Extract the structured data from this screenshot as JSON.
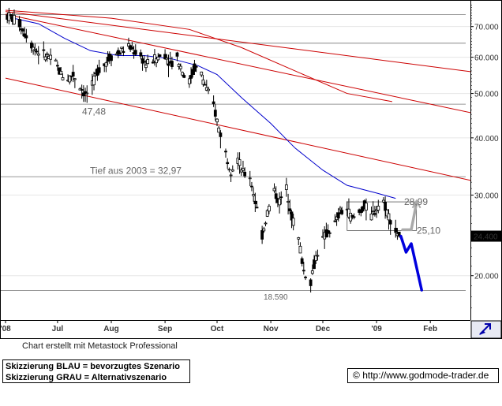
{
  "chart_data": {
    "type": "candlestick",
    "title": "",
    "ylim": [
      16,
      80
    ],
    "y_scale": "log",
    "grid": true,
    "y_ticks": [
      {
        "value": 70,
        "label": "70.000"
      },
      {
        "value": 60,
        "label": "60.000"
      },
      {
        "value": 50,
        "label": "50.000"
      },
      {
        "value": 40,
        "label": "40.000"
      },
      {
        "value": 30,
        "label": "30.000"
      },
      {
        "value": 20,
        "label": "20.000"
      }
    ],
    "x_ticks": [
      {
        "date": "2008-06-01",
        "label": "'08"
      },
      {
        "date": "2008-07-01",
        "label": "Jul"
      },
      {
        "date": "2008-08-01",
        "label": "Aug"
      },
      {
        "date": "2008-09-01",
        "label": "Sep"
      },
      {
        "date": "2008-10-01",
        "label": "Oct"
      },
      {
        "date": "2008-11-01",
        "label": "Nov"
      },
      {
        "date": "2008-12-01",
        "label": "Dec"
      },
      {
        "date": "2009-01-01",
        "label": "'09"
      },
      {
        "date": "2009-02-01",
        "label": "Feb"
      }
    ],
    "horizontal_levels": [
      {
        "value": 74.5,
        "label": ""
      },
      {
        "value": 64.5,
        "label": ""
      },
      {
        "value": 47.48,
        "label": "47,48"
      },
      {
        "value": 32.97,
        "label": "Tief aus 2003  =  32,97"
      },
      {
        "value": 18.59,
        "label": "18.590"
      }
    ],
    "last_price": {
      "value": 24.4,
      "label": "24.400",
      "color": "#000000"
    },
    "close_series": [
      {
        "date": "2008-06-02",
        "close": 74.0
      },
      {
        "date": "2008-06-05",
        "close": 73.0
      },
      {
        "date": "2008-06-09",
        "close": 71.0
      },
      {
        "date": "2008-06-12",
        "close": 68.0
      },
      {
        "date": "2008-06-16",
        "close": 64.0
      },
      {
        "date": "2008-06-19",
        "close": 62.0
      },
      {
        "date": "2008-06-23",
        "close": 61.0
      },
      {
        "date": "2008-06-26",
        "close": 60.0
      },
      {
        "date": "2008-06-30",
        "close": 58.0
      },
      {
        "date": "2008-07-03",
        "close": 55.0
      },
      {
        "date": "2008-07-07",
        "close": 54.0
      },
      {
        "date": "2008-07-10",
        "close": 55.0
      },
      {
        "date": "2008-07-14",
        "close": 52.0
      },
      {
        "date": "2008-07-17",
        "close": 49.5
      },
      {
        "date": "2008-07-21",
        "close": 52.0
      },
      {
        "date": "2008-07-24",
        "close": 56.0
      },
      {
        "date": "2008-07-28",
        "close": 58.0
      },
      {
        "date": "2008-07-31",
        "close": 60.0
      },
      {
        "date": "2008-08-04",
        "close": 61.0
      },
      {
        "date": "2008-08-07",
        "close": 62.0
      },
      {
        "date": "2008-08-11",
        "close": 63.0
      },
      {
        "date": "2008-08-14",
        "close": 62.0
      },
      {
        "date": "2008-08-18",
        "close": 60.0
      },
      {
        "date": "2008-08-21",
        "close": 58.0
      },
      {
        "date": "2008-08-25",
        "close": 59.0
      },
      {
        "date": "2008-08-28",
        "close": 60.0
      },
      {
        "date": "2008-09-01",
        "close": 61.0
      },
      {
        "date": "2008-09-04",
        "close": 58.0
      },
      {
        "date": "2008-09-08",
        "close": 60.0
      },
      {
        "date": "2008-09-11",
        "close": 56.0
      },
      {
        "date": "2008-09-15",
        "close": 53.0
      },
      {
        "date": "2008-09-18",
        "close": 57.0
      },
      {
        "date": "2008-09-22",
        "close": 55.0
      },
      {
        "date": "2008-09-25",
        "close": 51.0
      },
      {
        "date": "2008-09-29",
        "close": 47.0
      },
      {
        "date": "2008-10-02",
        "close": 42.0
      },
      {
        "date": "2008-10-06",
        "close": 37.0
      },
      {
        "date": "2008-10-09",
        "close": 34.0
      },
      {
        "date": "2008-10-13",
        "close": 36.0
      },
      {
        "date": "2008-10-16",
        "close": 33.5
      },
      {
        "date": "2008-10-20",
        "close": 33.0
      },
      {
        "date": "2008-10-23",
        "close": 29.0
      },
      {
        "date": "2008-10-27",
        "close": 24.5
      },
      {
        "date": "2008-10-30",
        "close": 27.5
      },
      {
        "date": "2008-11-03",
        "close": 30.5
      },
      {
        "date": "2008-11-06",
        "close": 29.0
      },
      {
        "date": "2008-11-10",
        "close": 31.0
      },
      {
        "date": "2008-11-13",
        "close": 27.0
      },
      {
        "date": "2008-11-17",
        "close": 24.0
      },
      {
        "date": "2008-11-20",
        "close": 20.5
      },
      {
        "date": "2008-11-24",
        "close": 19.5
      },
      {
        "date": "2008-11-27",
        "close": 22.0
      },
      {
        "date": "2008-12-01",
        "close": 24.0
      },
      {
        "date": "2008-12-04",
        "close": 25.0
      },
      {
        "date": "2008-12-08",
        "close": 26.0
      },
      {
        "date": "2008-12-11",
        "close": 27.5
      },
      {
        "date": "2008-12-15",
        "close": 28.0
      },
      {
        "date": "2008-12-18",
        "close": 26.5
      },
      {
        "date": "2008-12-22",
        "close": 27.5
      },
      {
        "date": "2008-12-25",
        "close": 28.5
      },
      {
        "date": "2008-12-29",
        "close": 27.0
      },
      {
        "date": "2009-01-02",
        "close": 28.5
      },
      {
        "date": "2009-01-05",
        "close": 29.0
      },
      {
        "date": "2009-01-08",
        "close": 27.0
      },
      {
        "date": "2009-01-12",
        "close": 25.0
      },
      {
        "date": "2009-01-15",
        "close": 24.4
      }
    ],
    "moving_average": {
      "color": "#0000cc",
      "points": [
        {
          "date": "2008-06-02",
          "value": 73.5
        },
        {
          "date": "2008-06-20",
          "value": 71.0
        },
        {
          "date": "2008-07-05",
          "value": 66.0
        },
        {
          "date": "2008-07-20",
          "value": 62.0
        },
        {
          "date": "2008-08-05",
          "value": 60.5
        },
        {
          "date": "2008-08-20",
          "value": 60.5
        },
        {
          "date": "2008-09-05",
          "value": 59.5
        },
        {
          "date": "2008-09-20",
          "value": 57.5
        },
        {
          "date": "2008-10-01",
          "value": 55.0
        },
        {
          "date": "2008-10-15",
          "value": 49.0
        },
        {
          "date": "2008-11-01",
          "value": 43.0
        },
        {
          "date": "2008-11-15",
          "value": 38.0
        },
        {
          "date": "2008-12-01",
          "value": 34.0
        },
        {
          "date": "2008-12-15",
          "value": 31.5
        },
        {
          "date": "2009-01-01",
          "value": 30.3
        },
        {
          "date": "2009-01-12",
          "value": 29.5
        }
      ]
    },
    "trend_lines": [
      {
        "color": "#cc0000",
        "from": {
          "date": "2008-06-01",
          "value": 75.5
        },
        "to": {
          "date": "2009-03-01",
          "value": 55.5
        }
      },
      {
        "color": "#cc0000",
        "from": {
          "date": "2008-06-01",
          "value": 74.5
        },
        "to": {
          "date": "2009-03-01",
          "value": 45.0
        }
      },
      {
        "color": "#cc0000",
        "from": {
          "date": "2008-06-01",
          "value": 54.0
        },
        "to": {
          "date": "2009-03-01",
          "value": 32.0
        }
      }
    ],
    "curved_resistance": {
      "color": "#cc0000",
      "points": [
        {
          "date": "2008-06-01",
          "value": 76.0
        },
        {
          "date": "2008-08-01",
          "value": 73.0
        },
        {
          "date": "2008-09-15",
          "value": 69.0
        },
        {
          "date": "2008-10-15",
          "value": 63.0
        },
        {
          "date": "2008-11-15",
          "value": 56.0
        },
        {
          "date": "2008-12-15",
          "value": 50.0
        },
        {
          "date": "2009-01-10",
          "value": 48.0
        }
      ]
    },
    "range_box": {
      "top": 28.99,
      "bottom": 25.1,
      "from": "2008-12-15",
      "to": "2009-01-24",
      "top_label": "28,99",
      "bottom_label": "25,10"
    },
    "scenarios": [
      {
        "name": "BLAU",
        "color": "#0000dd",
        "points": [
          {
            "date": "2009-01-15",
            "value": 24.4
          },
          {
            "date": "2009-01-18",
            "value": 22.5
          },
          {
            "date": "2009-01-21",
            "value": 23.5
          },
          {
            "date": "2009-01-27",
            "value": 18.6
          }
        ]
      },
      {
        "name": "GRAU",
        "color": "#aaaaaa",
        "points": [
          {
            "date": "2009-01-16",
            "value": 25.2
          },
          {
            "date": "2009-01-21",
            "value": 25.2
          },
          {
            "date": "2009-01-24",
            "value": 28.8
          }
        ]
      }
    ]
  },
  "caption": "Chart erstellt mit Metastock Professional",
  "legend": {
    "line1": "Skizzierung BLAU = bevorzugtes Szenario",
    "line2": "Skizzierung GRAU = Alternativszenario"
  },
  "source": {
    "copyright": "©",
    "url": "http://www.godmode-trader.de"
  },
  "axis_corner_icon": "arrow-icon"
}
